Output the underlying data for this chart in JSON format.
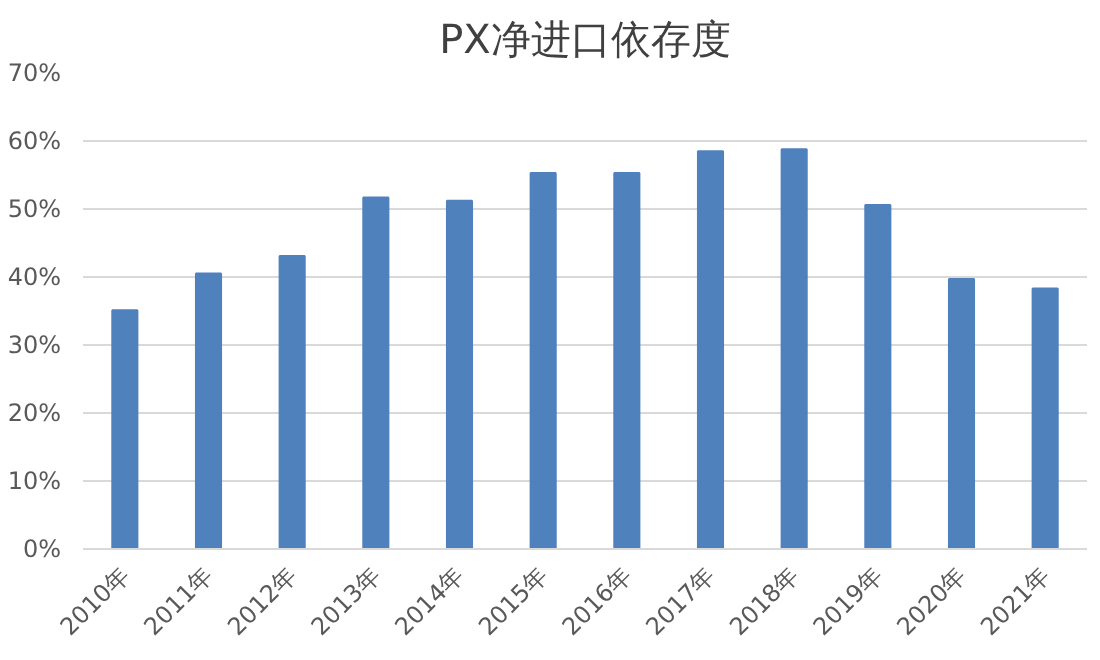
{
  "chart_data": {
    "type": "bar",
    "title": "PX净进口依存度",
    "categories": [
      "2010年",
      "2011年",
      "2012年",
      "2013年",
      "2014年",
      "2015年",
      "2016年",
      "2017年",
      "2018年",
      "2019年",
      "2020年",
      "2021年"
    ],
    "values": [
      35.1,
      40.5,
      43.1,
      51.7,
      51.2,
      55.3,
      55.3,
      58.5,
      58.8,
      50.6,
      39.7,
      38.3
    ],
    "color": "#4f81bd",
    "ylim": [
      0,
      70
    ],
    "yticks": [
      {
        "value": 0,
        "label": "0%"
      },
      {
        "value": 10,
        "label": "10%"
      },
      {
        "value": 20,
        "label": "20%"
      },
      {
        "value": 30,
        "label": "30%"
      },
      {
        "value": 40,
        "label": "40%"
      },
      {
        "value": 50,
        "label": "50%"
      },
      {
        "value": 60,
        "label": "60%"
      },
      {
        "value": 70,
        "label": "70%"
      }
    ],
    "grid": "y"
  }
}
